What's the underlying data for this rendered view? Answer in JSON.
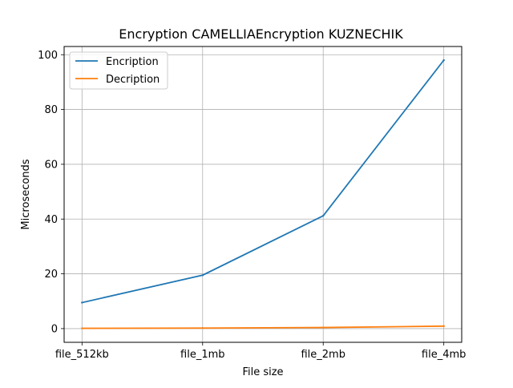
{
  "chart_data": {
    "type": "line",
    "title": "Encryption CAMELLIAEncryption KUZNECHIK",
    "xlabel": "File size",
    "ylabel": "Microseconds",
    "categories": [
      "file_512kb",
      "file_1mb",
      "file_2mb",
      "file_4mb"
    ],
    "ylim": [
      -5,
      103
    ],
    "yticks": [
      0,
      20,
      40,
      60,
      80,
      100
    ],
    "grid": true,
    "legend_position": "top-left",
    "series": [
      {
        "name": "Encription",
        "color": "#1f77b4",
        "values": [
          9.5,
          19.5,
          41.2,
          98.0
        ]
      },
      {
        "name": "Decription",
        "color": "#ff7f0e",
        "values": [
          0.1,
          0.2,
          0.4,
          0.9
        ]
      }
    ]
  }
}
